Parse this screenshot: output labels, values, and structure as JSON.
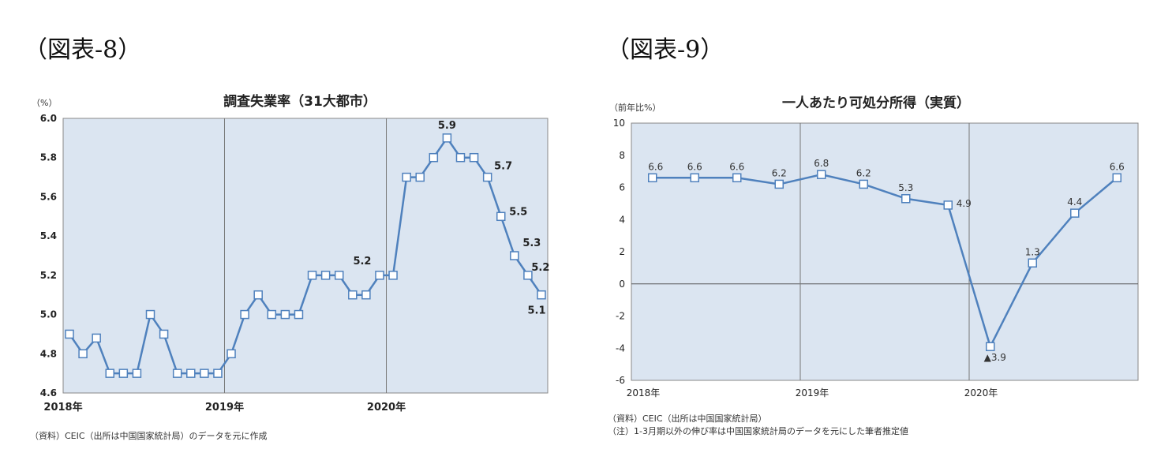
{
  "figures": [
    {
      "label": "（図表-8）",
      "unit": "（%）",
      "source": "（資料）CEIC（出所は中国国家統計局）のデータを元に作成",
      "notes": []
    },
    {
      "label": "（図表-9）",
      "unit": "（前年比%）",
      "source": "（資料）CEIC（出所は中国国家統計局）",
      "notes": [
        "（注）1-3月期以外の伸び率は中国国家統計局のデータを元にした筆者推定値"
      ]
    }
  ],
  "chart_data": [
    {
      "type": "line",
      "title": "調査失業率（31大都市）",
      "ylabel": "（%）",
      "ylim": [
        4.6,
        6.0
      ],
      "yticks": [
        "6.0",
        "5.8",
        "5.6",
        "5.4",
        "5.2",
        "5.0",
        "4.8",
        "4.6"
      ],
      "xticks": [
        "2018年",
        "2019年",
        "2020年"
      ],
      "grid": "vertical year separators",
      "background": "#dbe5f1",
      "line_color": "#4f81bd",
      "x": [
        "2018-01",
        "2018-02",
        "2018-03",
        "2018-04",
        "2018-05",
        "2018-06",
        "2018-07",
        "2018-08",
        "2018-09",
        "2018-10",
        "2018-11",
        "2018-12",
        "2019-01",
        "2019-02",
        "2019-03",
        "2019-04",
        "2019-05",
        "2019-06",
        "2019-07",
        "2019-08",
        "2019-09",
        "2019-10",
        "2019-11",
        "2019-12",
        "2020-01",
        "2020-02",
        "2020-03",
        "2020-04",
        "2020-05",
        "2020-06",
        "2020-07",
        "2020-08",
        "2020-09",
        "2020-10",
        "2020-11",
        "2020-12"
      ],
      "series": [
        {
          "values": [
            4.9,
            4.8,
            4.88,
            4.7,
            4.7,
            4.7,
            5.0,
            4.9,
            4.7,
            4.7,
            4.7,
            4.7,
            4.8,
            5.0,
            5.1,
            5.0,
            5.0,
            5.0,
            5.2,
            5.2,
            5.2,
            5.1,
            5.1,
            5.2,
            5.2,
            5.7,
            5.7,
            5.8,
            5.9,
            5.8,
            5.8,
            5.7,
            5.5,
            5.3,
            5.2,
            5.1
          ]
        }
      ],
      "data_labels": [
        {
          "x": "2019-12",
          "text": "5.2"
        },
        {
          "x": "2020-05",
          "text": "5.9"
        },
        {
          "x": "2020-08",
          "text": "5.7"
        },
        {
          "x": "2020-09",
          "text": "5.5"
        },
        {
          "x": "2020-10",
          "text": "5.3"
        },
        {
          "x": "2020-11",
          "text": "5.2"
        },
        {
          "x": "2020-12",
          "text": "5.1"
        }
      ]
    },
    {
      "type": "line",
      "title": "一人あたり可処分所得（実質）",
      "ylabel": "（前年比%）",
      "ylim": [
        -6,
        10
      ],
      "yticks": [
        "10",
        "8",
        "6",
        "4",
        "2",
        "0",
        "-2",
        "-4",
        "-6"
      ],
      "xticks": [
        "2018年",
        "2019年",
        "2020年"
      ],
      "grid": "vertical year separators, zero line",
      "background": "#dbe5f1",
      "line_color": "#4f81bd",
      "x": [
        "2018-Q1",
        "2018-Q2",
        "2018-Q3",
        "2018-Q4",
        "2019-Q1",
        "2019-Q2",
        "2019-Q3",
        "2019-Q4",
        "2020-Q1",
        "2020-Q2",
        "2020-Q3",
        "2020-Q4"
      ],
      "series": [
        {
          "values": [
            6.6,
            6.6,
            6.6,
            6.2,
            6.8,
            6.2,
            5.3,
            4.9,
            -3.9,
            1.3,
            4.4,
            6.6
          ]
        }
      ],
      "data_labels": [
        {
          "x": "2018-Q1",
          "text": "6.6"
        },
        {
          "x": "2018-Q2",
          "text": "6.6"
        },
        {
          "x": "2018-Q3",
          "text": "6.6"
        },
        {
          "x": "2018-Q4",
          "text": "6.2"
        },
        {
          "x": "2019-Q1",
          "text": "6.8"
        },
        {
          "x": "2019-Q2",
          "text": "6.2"
        },
        {
          "x": "2019-Q3",
          "text": "5.3"
        },
        {
          "x": "2019-Q4",
          "text": "4.9"
        },
        {
          "x": "2020-Q1",
          "text": "▲3.9"
        },
        {
          "x": "2020-Q2",
          "text": "1.3"
        },
        {
          "x": "2020-Q3",
          "text": "4.4"
        },
        {
          "x": "2020-Q4",
          "text": "6.6"
        }
      ]
    }
  ]
}
